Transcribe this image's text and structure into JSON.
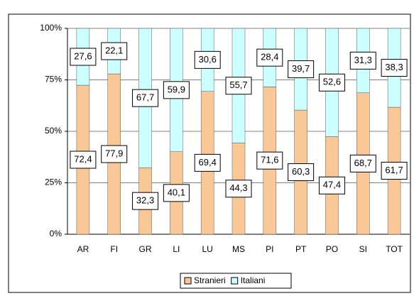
{
  "chart_data": {
    "type": "stacked_bar_100",
    "categories": [
      "AR",
      "FI",
      "GR",
      "LI",
      "LU",
      "MS",
      "PI",
      "PT",
      "PO",
      "SI",
      "TOT"
    ],
    "series": [
      {
        "name": "Stranieri",
        "color": "#f9c896",
        "values": [
          72.4,
          77.9,
          32.3,
          40.1,
          69.4,
          44.3,
          71.6,
          60.3,
          47.4,
          68.7,
          61.7
        ],
        "value_labels": [
          "72,4",
          "77,9",
          "32,3",
          "40,1",
          "69,4",
          "44,3",
          "71,6",
          "60,3",
          "47,4",
          "68,7",
          "61,7"
        ]
      },
      {
        "name": "Italiani",
        "color": "#ccffff",
        "values": [
          27.6,
          22.1,
          67.7,
          59.9,
          30.6,
          55.7,
          28.4,
          39.7,
          52.6,
          31.3,
          38.3
        ],
        "value_labels": [
          "27,6",
          "22,1",
          "67,7",
          "59,9",
          "30,6",
          "55,7",
          "28,4",
          "39,7",
          "52,6",
          "31,3",
          "38,3"
        ]
      }
    ],
    "ylim": [
      0,
      100
    ],
    "yticks": [
      {
        "value": 0,
        "label": "0%"
      },
      {
        "value": 25,
        "label": "25%"
      },
      {
        "value": 50,
        "label": "50%"
      },
      {
        "value": 75,
        "label": "75%"
      },
      {
        "value": 100,
        "label": "100%"
      }
    ],
    "grid": true,
    "legend": "bottom"
  }
}
